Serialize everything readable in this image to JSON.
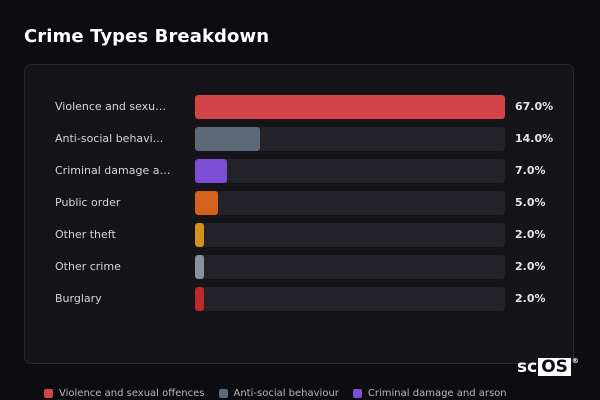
{
  "title": "Crime Types Breakdown",
  "chart_data": {
    "type": "bar",
    "orientation": "horizontal",
    "title": "Crime Types Breakdown",
    "categories": [
      "Violence and sexual offences",
      "Anti-social behaviour",
      "Criminal damage and arson",
      "Public order",
      "Other theft",
      "Other crime",
      "Burglary"
    ],
    "display_labels": [
      "Violence and sexua...",
      "Anti-social behavi...",
      "Criminal damage an...",
      "Public order",
      "Other theft",
      "Other crime",
      "Burglary"
    ],
    "values": [
      67.0,
      14.0,
      7.0,
      5.0,
      2.0,
      2.0,
      2.0
    ],
    "value_labels": [
      "67.0%",
      "14.0%",
      "7.0%",
      "5.0%",
      "2.0%",
      "2.0%",
      "2.0%"
    ],
    "colors": [
      "#d2434a",
      "#5e6978",
      "#7b4ed6",
      "#d4621f",
      "#d7901c",
      "#8a909c",
      "#c0292c"
    ],
    "xlim": [
      0,
      67
    ],
    "grid": false,
    "legend_position": "bottom"
  },
  "legend": [
    {
      "label": "Violence and sexual offences",
      "color": "#d2434a"
    },
    {
      "label": "Anti-social behaviour",
      "color": "#5e6978"
    },
    {
      "label": "Criminal damage and arson",
      "color": "#7b4ed6"
    }
  ],
  "logo": {
    "prefix": "sc",
    "boxed": "OS",
    "mark": "®"
  }
}
